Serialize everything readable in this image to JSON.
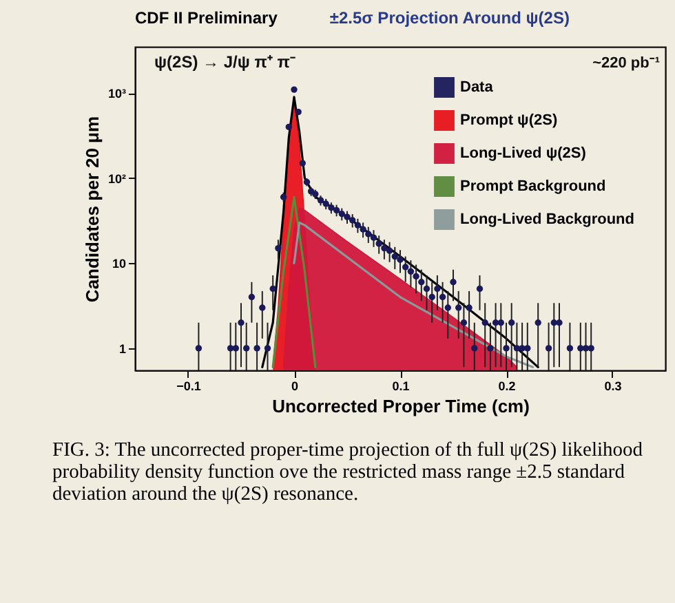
{
  "chart_data": {
    "type": "line",
    "title": "CDF II Preliminary",
    "subtitle": "±2.5σ Projection Around ψ(2S)",
    "xlabel": "Uncorrected Proper Time (cm)",
    "ylabel": "Candidates per 20  μm",
    "xlim": [
      -0.15,
      0.35
    ],
    "xticks": [
      -0.1,
      0,
      0.1,
      0.2,
      0.3
    ],
    "ylim": [
      0.55,
      3500
    ],
    "yticks": [
      1,
      10,
      {
        "value": 100,
        "label": "10²"
      },
      {
        "value": 1000,
        "label": "10³"
      }
    ],
    "log": true,
    "grid": false,
    "legend": "top right",
    "line_style": "solid",
    "annotations": [
      "ψ(2S) → J/ψ π⁺ π⁻",
      "~220 pb⁻¹",
      "FIG. 3: The uncorrected proper-time projection of th full ψ(2S) likelihood probability density function ove the restricted mass range ±2.5 standard deviation around the ψ(2S) resonance."
    ],
    "series": [
      {
        "name": "Data",
        "type": "scatter",
        "marker": "circle",
        "color": "#1a1a5a",
        "x": [
          -0.09,
          -0.06,
          -0.055,
          -0.05,
          -0.045,
          -0.04,
          -0.035,
          -0.03,
          -0.025,
          -0.02,
          -0.015,
          -0.01,
          -0.005,
          0,
          0.004,
          0.008,
          0.012,
          0.016,
          0.02,
          0.025,
          0.03,
          0.035,
          0.04,
          0.045,
          0.05,
          0.055,
          0.06,
          0.065,
          0.07,
          0.075,
          0.08,
          0.085,
          0.09,
          0.095,
          0.1,
          0.105,
          0.11,
          0.115,
          0.12,
          0.125,
          0.13,
          0.135,
          0.14,
          0.145,
          0.15,
          0.155,
          0.16,
          0.165,
          0.17,
          0.175,
          0.18,
          0.185,
          0.19,
          0.195,
          0.2,
          0.205,
          0.21,
          0.215,
          0.22,
          0.23,
          0.24,
          0.245,
          0.25,
          0.26,
          0.27,
          0.275,
          0.28
        ],
        "values": [
          1,
          1,
          1,
          2,
          1,
          4,
          1,
          3,
          1,
          5,
          15,
          60,
          400,
          1100,
          600,
          150,
          90,
          70,
          65,
          55,
          50,
          45,
          42,
          38,
          35,
          32,
          28,
          25,
          22,
          20,
          17,
          15,
          14,
          12,
          11,
          9,
          8,
          7,
          6,
          5,
          4,
          5,
          4,
          3,
          6,
          3,
          2,
          3,
          1,
          5,
          2,
          1,
          2,
          2,
          1,
          2,
          1,
          1,
          1,
          2,
          1,
          2,
          2,
          1,
          1,
          1,
          1
        ],
        "errors": [
          [
            0.55,
            2
          ],
          [
            0.55,
            2
          ],
          [
            0.55,
            2
          ],
          1.4,
          [
            0.55,
            2
          ],
          2,
          [
            0.55,
            2
          ],
          1.7,
          [
            0.55,
            2
          ],
          2.2,
          3.9,
          7.7,
          20,
          33,
          24,
          12,
          9.5,
          8.4,
          8.1,
          7.4,
          7.1,
          6.7,
          6.5,
          6.2,
          5.9,
          5.7,
          5.3,
          5,
          4.7,
          4.5,
          4.1,
          3.9,
          3.7,
          3.5,
          3.3,
          3,
          2.8,
          2.6,
          2.4,
          2.2,
          2,
          2.2,
          2,
          1.7,
          2.4,
          1.7,
          1.4,
          1.7,
          [
            0.55,
            2
          ],
          2.2,
          1.4,
          [
            0.55,
            2
          ],
          1.4,
          1.4,
          [
            0.55,
            2
          ],
          1.4,
          [
            0.55,
            2
          ],
          [
            0.55,
            2
          ],
          [
            0.55,
            2
          ],
          1.4,
          [
            0.55,
            2
          ],
          1.4,
          1.4,
          [
            0.55,
            2
          ],
          [
            0.55,
            2
          ],
          [
            0.55,
            2
          ],
          [
            0.55,
            2
          ]
        ]
      },
      {
        "name": "Prompt ψ(2S)",
        "type": "area",
        "color": "#e8141c",
        "x": [
          -0.02,
          -0.015,
          -0.01,
          -0.005,
          0,
          0.005,
          0.01,
          0.015,
          0.02
        ],
        "values": [
          0.6,
          3,
          30,
          250,
          800,
          250,
          30,
          3,
          0.6
        ]
      },
      {
        "name": "Long-Lived ψ(2S)",
        "type": "area",
        "color": "#d0183c",
        "x": [
          -0.01,
          -0.005,
          0,
          0.005,
          0.01,
          0.05,
          0.1,
          0.15,
          0.2,
          0.21
        ],
        "values": [
          0.6,
          5,
          25,
          45,
          42,
          18,
          6.5,
          2.3,
          0.8,
          0.6
        ]
      },
      {
        "name": "Prompt Background",
        "color": "#5a8a3a",
        "x": [
          -0.02,
          -0.01,
          0,
          0.01,
          0.02
        ],
        "values": [
          0.6,
          8,
          60,
          8,
          0.6
        ]
      },
      {
        "name": "Long-Lived Background",
        "color": "#8a9a9a",
        "x": [
          0,
          0.005,
          0.01,
          0.1,
          0.2,
          0.225
        ],
        "values": [
          10,
          30,
          28,
          4,
          0.8,
          0.6
        ]
      },
      {
        "color": "#000000",
        "x": [
          -0.03,
          -0.02,
          -0.01,
          -0.005,
          0,
          0.005,
          0.01,
          0.02,
          0.05,
          0.1,
          0.15,
          0.2,
          0.23
        ],
        "values": [
          0.6,
          2,
          40,
          300,
          900,
          350,
          100,
          60,
          35,
          12,
          4,
          1.3,
          0.6
        ]
      }
    ]
  }
}
